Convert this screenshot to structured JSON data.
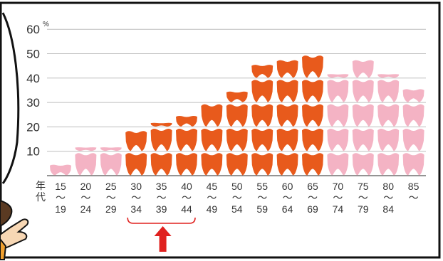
{
  "chart_data": {
    "type": "bar",
    "title": "",
    "xlabel": "年代",
    "ylabel": "",
    "y_unit": "%",
    "ylim": [
      0,
      60
    ],
    "yticks": [
      10,
      20,
      30,
      40,
      50,
      60
    ],
    "grid": true,
    "categories": [
      {
        "start": "15",
        "end": "19"
      },
      {
        "start": "20",
        "end": "24"
      },
      {
        "start": "25",
        "end": "29"
      },
      {
        "start": "30",
        "end": "34"
      },
      {
        "start": "35",
        "end": "39"
      },
      {
        "start": "40",
        "end": "44"
      },
      {
        "start": "45",
        "end": "49"
      },
      {
        "start": "50",
        "end": "54"
      },
      {
        "start": "55",
        "end": "59"
      },
      {
        "start": "60",
        "end": "64"
      },
      {
        "start": "65",
        "end": "69"
      },
      {
        "start": "70",
        "end": "74"
      },
      {
        "start": "75",
        "end": "79"
      },
      {
        "start": "80",
        "end": "84"
      },
      {
        "start": "85",
        "end": ""
      }
    ],
    "range_mark": "〜",
    "values": [
      5,
      12,
      12,
      19,
      22,
      25,
      30,
      35,
      46,
      48,
      50,
      42,
      48,
      42,
      36
    ],
    "highlight": {
      "from": "30",
      "to": "40"
    },
    "colors": {
      "dark": "#e85a1c",
      "light": "#f4b3c4",
      "grid": "#bdbdbd",
      "axis": "#555555",
      "highlight": "#e0211f"
    }
  },
  "icons": [
    "tooth-icon",
    "pointing-hand-icon",
    "up-arrow-icon"
  ]
}
